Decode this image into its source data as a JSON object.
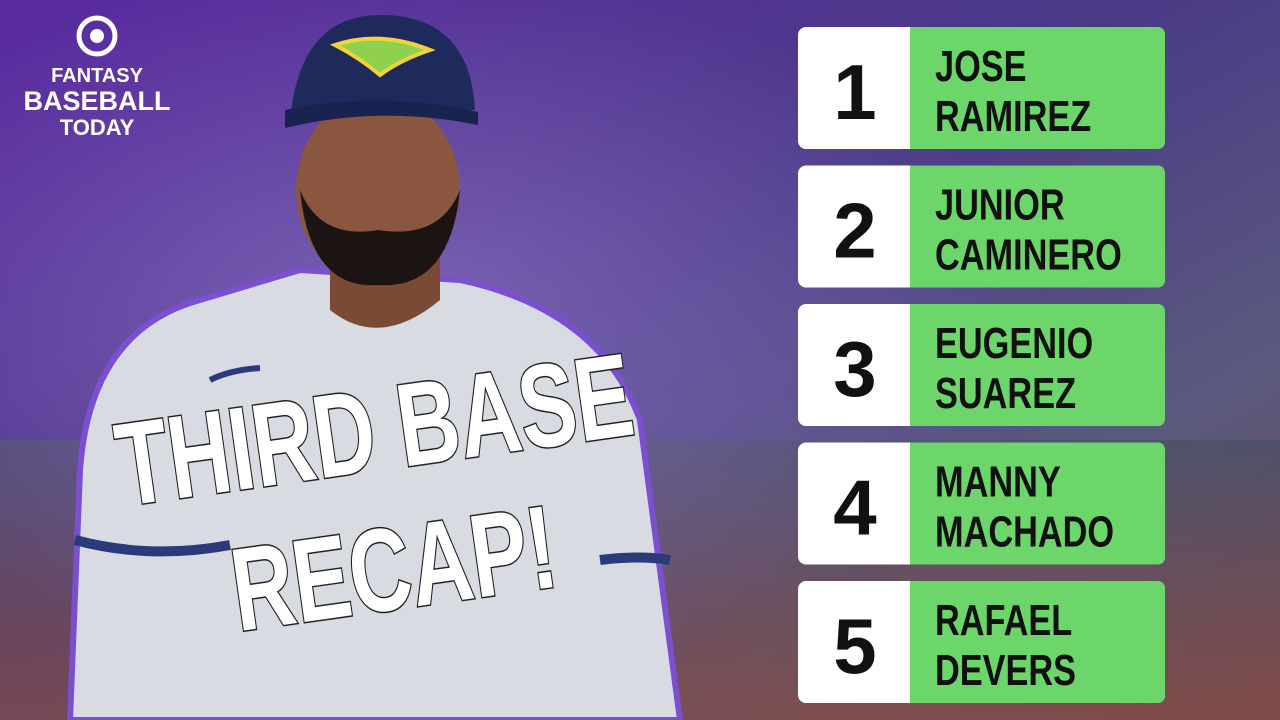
{
  "logo": {
    "lines": [
      "FANTASY",
      "BASEBALL",
      "TODAY"
    ]
  },
  "headline": {
    "lines": [
      "THIRD BASE",
      "RECAP!"
    ]
  },
  "rankings": [
    {
      "rank": 1,
      "first": "JOSE",
      "last": "RAMIREZ"
    },
    {
      "rank": 2,
      "first": "JUNIOR",
      "last": "CAMINERO"
    },
    {
      "rank": 3,
      "first": "EUGENIO",
      "last": "SUAREZ"
    },
    {
      "rank": 4,
      "first": "MANNY",
      "last": "MACHADO"
    },
    {
      "rank": 5,
      "first": "RAFAEL",
      "last": "DEVERS"
    }
  ]
}
